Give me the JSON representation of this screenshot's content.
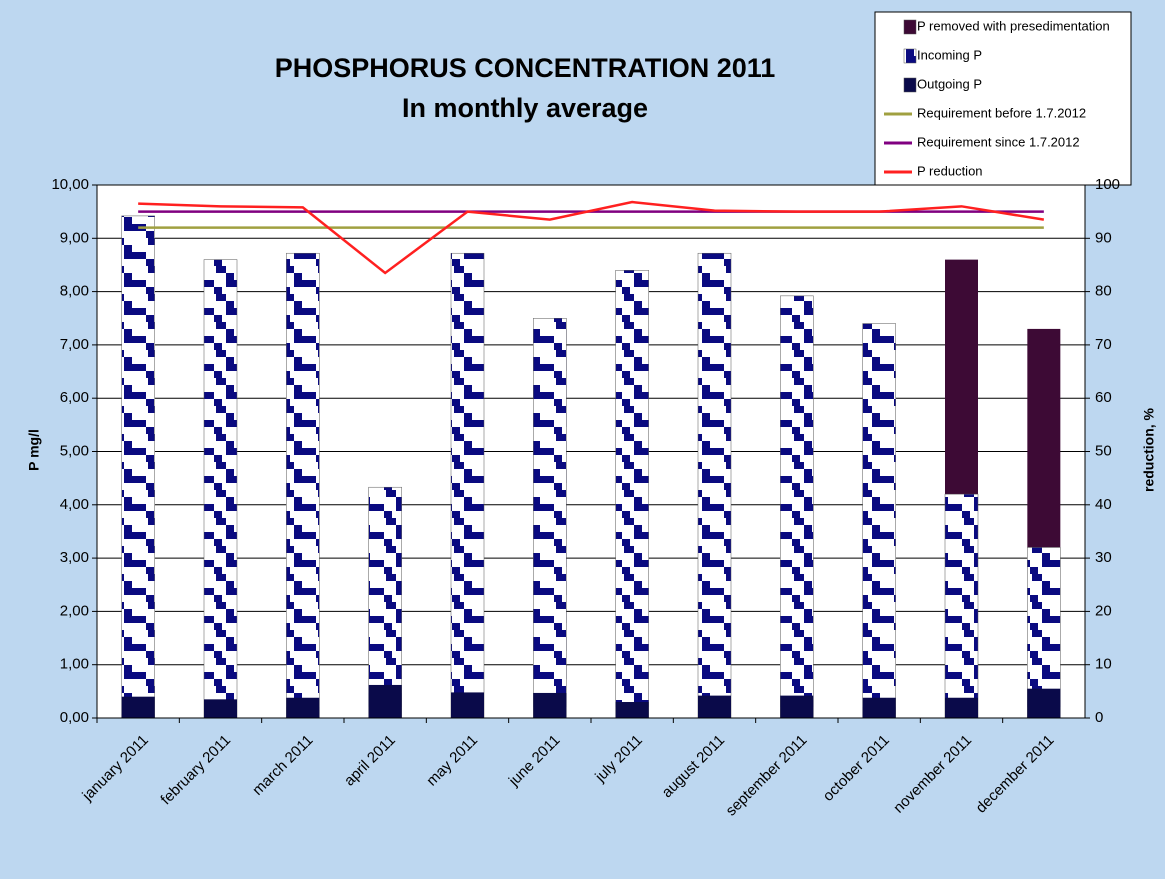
{
  "chart_data": {
    "type": "bar",
    "title": "PHOSPHORUS CONCENTRATION 2011",
    "subtitle": "In monthly average",
    "y_label": "P mg/l",
    "y2_label": "reduction, %",
    "categories": [
      "january 2011",
      "february 2011",
      "march 2011",
      "april 2011",
      "may 2011",
      "june 2011",
      "july 2011",
      "august 2011",
      "september 2011",
      "october 2011",
      "november 2011",
      "december 2011"
    ],
    "series": [
      {
        "name": "P removed with presedimentation",
        "color": "#3d0a35",
        "kind": "bar",
        "stack_on": 1,
        "values": [
          null,
          null,
          null,
          null,
          null,
          null,
          null,
          null,
          null,
          null,
          4.4,
          4.1
        ]
      },
      {
        "name": "Incoming P",
        "color": "#0a0a80",
        "kind": "bar",
        "values": [
          9.42,
          8.6,
          8.72,
          4.33,
          8.72,
          7.5,
          8.4,
          8.72,
          7.92,
          7.4,
          4.2,
          3.2
        ]
      },
      {
        "name": "Outgoing P",
        "color": "#0a0a4a",
        "kind": "bar",
        "values": [
          0.4,
          0.35,
          0.38,
          0.62,
          0.48,
          0.47,
          0.3,
          0.42,
          0.42,
          0.38,
          0.38,
          0.55
        ]
      },
      {
        "name": "Requirement before 1.7.2012",
        "color": "#a0a040",
        "kind": "line",
        "axis": "y2",
        "values": [
          92,
          92,
          92,
          92,
          92,
          92,
          92,
          92,
          92,
          92,
          92,
          92
        ]
      },
      {
        "name": "Requirement since 1.7.2012",
        "color": "#800080",
        "kind": "line",
        "axis": "y2",
        "values": [
          95,
          95,
          95,
          95,
          95,
          95,
          95,
          95,
          95,
          95,
          95,
          95
        ]
      },
      {
        "name": "P reduction",
        "color": "#ff2020",
        "kind": "line",
        "axis": "y2",
        "values": [
          96.5,
          96,
          95.8,
          83.5,
          95,
          93.5,
          96.8,
          95.2,
          95,
          95,
          96,
          93.5
        ]
      }
    ],
    "ylim": [
      0,
      10
    ],
    "yticks": [
      {
        "value": 0,
        "label": "0,00"
      },
      {
        "value": 1,
        "label": "1,00"
      },
      {
        "value": 2,
        "label": "2,00"
      },
      {
        "value": 3,
        "label": "3,00"
      },
      {
        "value": 4,
        "label": "4,00"
      },
      {
        "value": 5,
        "label": "5,00"
      },
      {
        "value": 6,
        "label": "6,00"
      },
      {
        "value": 7,
        "label": "7,00"
      },
      {
        "value": 8,
        "label": "8,00"
      },
      {
        "value": 9,
        "label": "9,00"
      },
      {
        "value": 10,
        "label": "10,00"
      }
    ],
    "y2lim": [
      0,
      100
    ],
    "y2ticks": [
      0,
      10,
      20,
      30,
      40,
      50,
      60,
      70,
      80,
      90,
      100
    ],
    "grid": true,
    "legend": "top-right"
  }
}
